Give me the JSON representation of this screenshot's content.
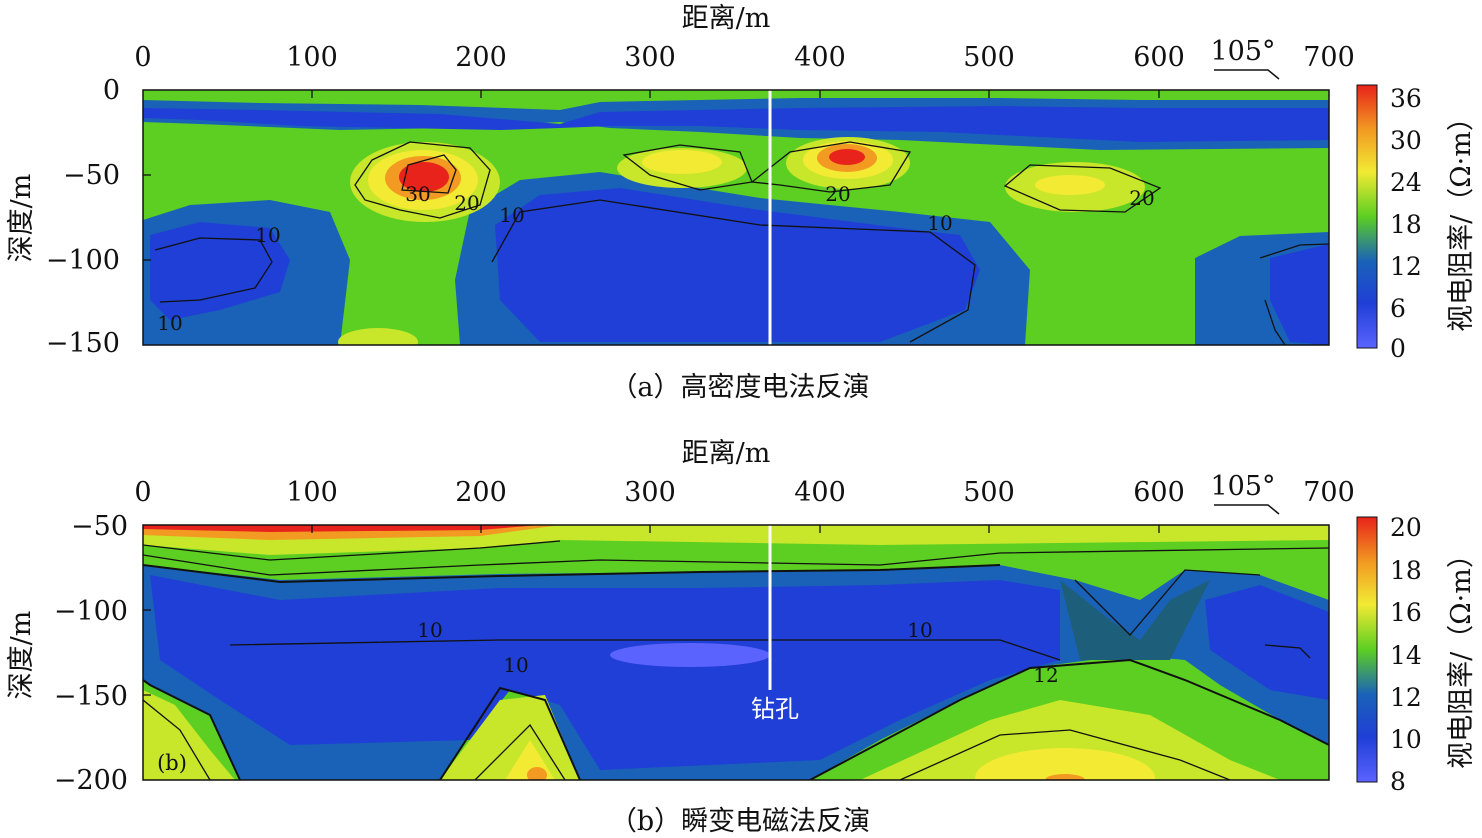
{
  "panels": [
    {
      "id": "a",
      "top_axis_label": "距离/m",
      "x_ticks": [
        "0",
        "100",
        "200",
        "300",
        "400",
        "500",
        "600",
        "700"
      ],
      "y_axis_label": "深度/m",
      "y_ticks": [
        "0",
        "−50",
        "−100",
        "−150"
      ],
      "azimuth": "105°",
      "caption": "（a）高密度电法反演",
      "colorbar_label": "视电阻率/（Ω·m）",
      "colorbar_ticks": [
        "36",
        "30",
        "24",
        "18",
        "12",
        "6",
        "0"
      ],
      "contour_labels": [
        "30",
        "20",
        "20",
        "20",
        "10",
        "10",
        "10",
        "10"
      ],
      "corner_label": ""
    },
    {
      "id": "b",
      "top_axis_label": "距离/m",
      "x_ticks": [
        "0",
        "100",
        "200",
        "300",
        "400",
        "500",
        "600",
        "700"
      ],
      "y_axis_label": "深度/m",
      "y_ticks": [
        "−50",
        "−100",
        "−150",
        "−200"
      ],
      "azimuth": "105°",
      "caption": "（b）瞬变电磁法反演",
      "colorbar_label": "视电阻率/（Ω·m）",
      "colorbar_ticks": [
        "20",
        "18",
        "16",
        "14",
        "12",
        "10",
        "8"
      ],
      "contour_labels": [
        "10",
        "10",
        "12",
        "10"
      ],
      "corner_label": "(b)",
      "borehole_label": "钻孔"
    }
  ],
  "chart_data": [
    {
      "type": "heatmap",
      "title": "（a）高密度电法反演",
      "xlabel": "距离/m",
      "ylabel": "深度/m",
      "xlim": [
        0,
        700
      ],
      "ylim": [
        -150,
        0
      ],
      "colorbar": {
        "label": "视电阻率/（Ω·m）",
        "range": [
          0,
          36
        ],
        "ticks": [
          0,
          6,
          12,
          18,
          24,
          30,
          36
        ]
      },
      "colors": {
        "low": "#1f3fd6",
        "mid_low": "#1a62b8",
        "mid": "#5ccf22",
        "high_mid": "#f2ea33",
        "high": "#e8231b"
      },
      "borehole_x": 370,
      "anomalies": [
        {
          "name": "low layer",
          "x": [
            0,
            700
          ],
          "depth": [
            -10,
            -40
          ],
          "value": 6
        },
        {
          "name": "high",
          "x": [
            165
          ],
          "depth": [
            -55
          ],
          "value": 32
        },
        {
          "name": "high",
          "x": [
            315
          ],
          "depth": [
            -40
          ],
          "value": 22
        },
        {
          "name": "high",
          "x": [
            410
          ],
          "depth": [
            -40
          ],
          "value": 30
        },
        {
          "name": "high",
          "x": [
            545
          ],
          "depth": [
            -55
          ],
          "value": 22
        },
        {
          "name": "low",
          "x": [
            80
          ],
          "depth": [
            -100
          ],
          "value": 6
        },
        {
          "name": "low",
          "x": [
            340
          ],
          "depth": [
            -110
          ],
          "value": 5
        },
        {
          "name": "low",
          "x": [
            660
          ],
          "depth": [
            -125
          ],
          "value": 6
        }
      ]
    },
    {
      "type": "heatmap",
      "title": "（b）瞬变电磁法反演",
      "xlabel": "距离/m",
      "ylabel": "深度/m",
      "xlim": [
        0,
        700
      ],
      "ylim": [
        -200,
        -50
      ],
      "colorbar": {
        "label": "视电阻率/（Ω·m）",
        "range": [
          8,
          20
        ],
        "ticks": [
          8,
          10,
          12,
          14,
          16,
          18,
          20
        ]
      },
      "colors": {
        "low": "#1f3fd6",
        "mid_low": "#1a62b8",
        "mid": "#5ccf22",
        "high_mid": "#f2ea33",
        "high": "#e8231b"
      },
      "borehole_x": 370,
      "anomalies": [
        {
          "name": "high",
          "x": [
            80,
            200
          ],
          "depth": [
            -55
          ],
          "value": 20
        },
        {
          "name": "low",
          "x": [
            330
          ],
          "depth": [
            -125
          ],
          "value": 8.5
        },
        {
          "name": "high",
          "x": [
            230
          ],
          "depth": [
            -195
          ],
          "value": 16
        },
        {
          "name": "high",
          "x": [
            545
          ],
          "depth": [
            -195
          ],
          "value": 16
        },
        {
          "name": "low",
          "x": [
            660
          ],
          "depth": [
            -125
          ],
          "value": 9
        }
      ]
    }
  ]
}
